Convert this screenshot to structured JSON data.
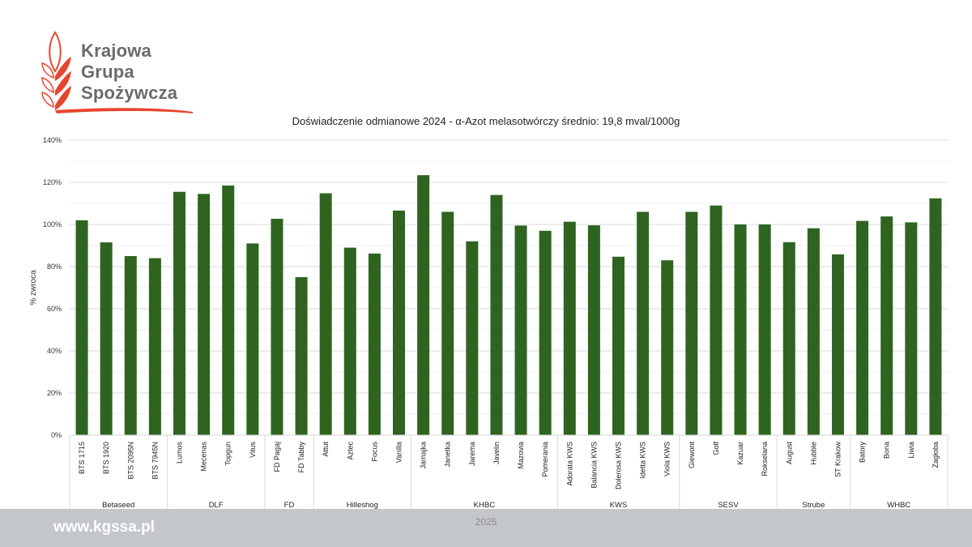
{
  "logo": {
    "line1": "Krajowa",
    "line2": "Grupa",
    "line3": "Spożywcza"
  },
  "footer": {
    "site": "www.kgssa.pl",
    "year": "2025"
  },
  "chart_data": {
    "type": "bar",
    "title": "Doświadczenie odmianowe 2024 - α-Azot melasotwórczy średnio: 19,8 mval/1000g",
    "ylabel": "% zwroca",
    "xlabel": "",
    "ylim": [
      0,
      140
    ],
    "yticks": [
      "0%",
      "20%",
      "40%",
      "60%",
      "80%",
      "100%",
      "120%",
      "140%"
    ],
    "grid": true,
    "color": "#2e6420",
    "categories": [
      "BTS 1715",
      "BTS 1920",
      "BTS 2095N",
      "BTS 7945N",
      "Lumos",
      "Mecenas",
      "Topgun",
      "Vitus",
      "FD Pagaj",
      "FD Tabby",
      "Attut",
      "Aztec",
      "Focus",
      "Vanilla",
      "Jamajka",
      "Janetka",
      "Jarema",
      "Javelin",
      "Mazovia",
      "Pomerania",
      "Adorata KWS",
      "Balancia KWS",
      "Dolerosa KWS",
      "Idetta KWS",
      "Viola KWS",
      "Giewont",
      "Golf",
      "Kazuar",
      "Rokselana",
      "August",
      "Hubble",
      "ST Krakow",
      "Batory",
      "Bona",
      "Liwia",
      "Zagłoba"
    ],
    "values": [
      102,
      91.5,
      85,
      84,
      115.5,
      114.5,
      118.5,
      91,
      102.7,
      75,
      114.8,
      89,
      86.2,
      106.6,
      123.4,
      106,
      92,
      114,
      99.5,
      97,
      101.3,
      99.6,
      84.7,
      106,
      83,
      106,
      109,
      100,
      100,
      91.6,
      98.2,
      85.8,
      101.7,
      103.8,
      101,
      112.4
    ],
    "groups": [
      {
        "name": "Betaseed",
        "count": 4
      },
      {
        "name": "DLF",
        "count": 4
      },
      {
        "name": "FD",
        "count": 2
      },
      {
        "name": "Hilleshog",
        "count": 4
      },
      {
        "name": "KHBC",
        "count": 6
      },
      {
        "name": "KWS",
        "count": 5
      },
      {
        "name": "SESV",
        "count": 4
      },
      {
        "name": "Strube",
        "count": 3
      },
      {
        "name": "WHBC",
        "count": 4
      }
    ]
  }
}
